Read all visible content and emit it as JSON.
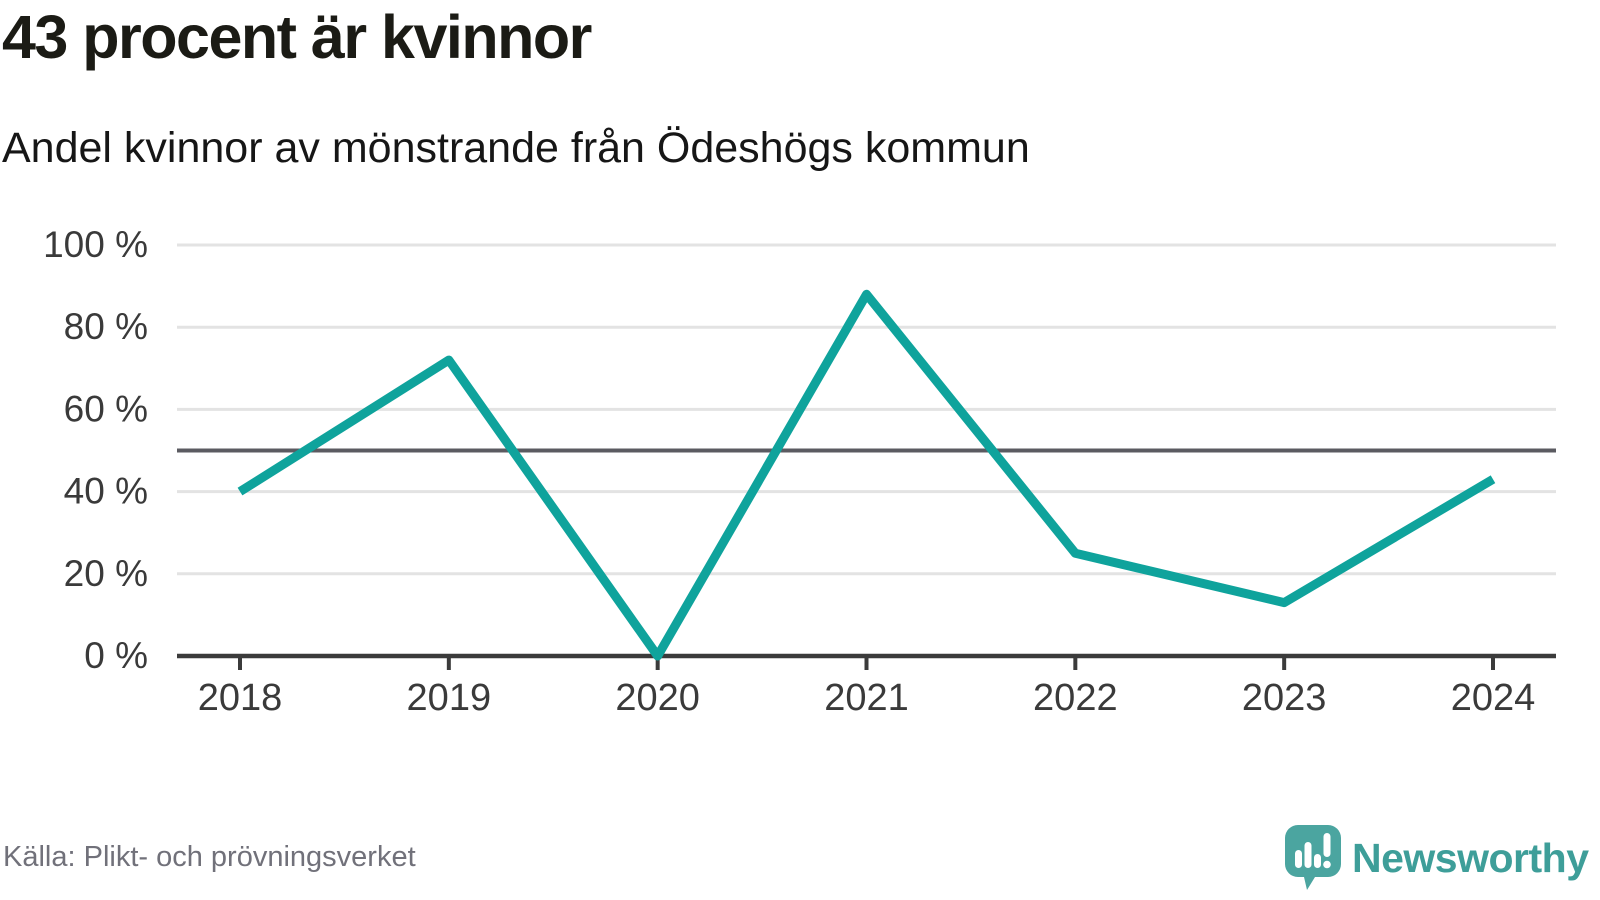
{
  "header": {
    "title": "43 procent är kvinnor",
    "subtitle": "Andel kvinnor av mönstrande från Ödeshögs kommun"
  },
  "footer": {
    "source": "Källa: Plikt- och prövningsverket",
    "brand_name": "Newsworthy",
    "brand_icon": "newsworthy-speech-bubble-barchart-icon"
  },
  "colors": {
    "line": "#0fa39c",
    "grid": "#e3e3e3",
    "reference_line": "#5b5b61",
    "axis": "#3b3b3b",
    "tick_label": "#3a3a3a",
    "brand_teal": "#4ba5a0",
    "title_text": "#1b1b15",
    "source_text": "#71717a"
  },
  "chart_data": {
    "type": "line",
    "title": "43 procent är kvinnor",
    "subtitle": "Andel kvinnor av mönstrande från Ödeshögs kommun",
    "x": [
      "2018",
      "2019",
      "2020",
      "2021",
      "2022",
      "2023",
      "2024"
    ],
    "series": [
      {
        "name": "Andel kvinnor av mönstrande (%)",
        "values": [
          40,
          72,
          0,
          88,
          25,
          13,
          43
        ]
      }
    ],
    "xlabel": "",
    "ylabel": "",
    "ylim": [
      0,
      100
    ],
    "yticks": [
      0,
      20,
      40,
      60,
      80,
      100
    ],
    "ytick_labels": [
      "0 %",
      "20 %",
      "40 %",
      "60 %",
      "80 %",
      "100 %"
    ],
    "reference_line": 50,
    "grid": "horizontal",
    "legend": "none"
  }
}
